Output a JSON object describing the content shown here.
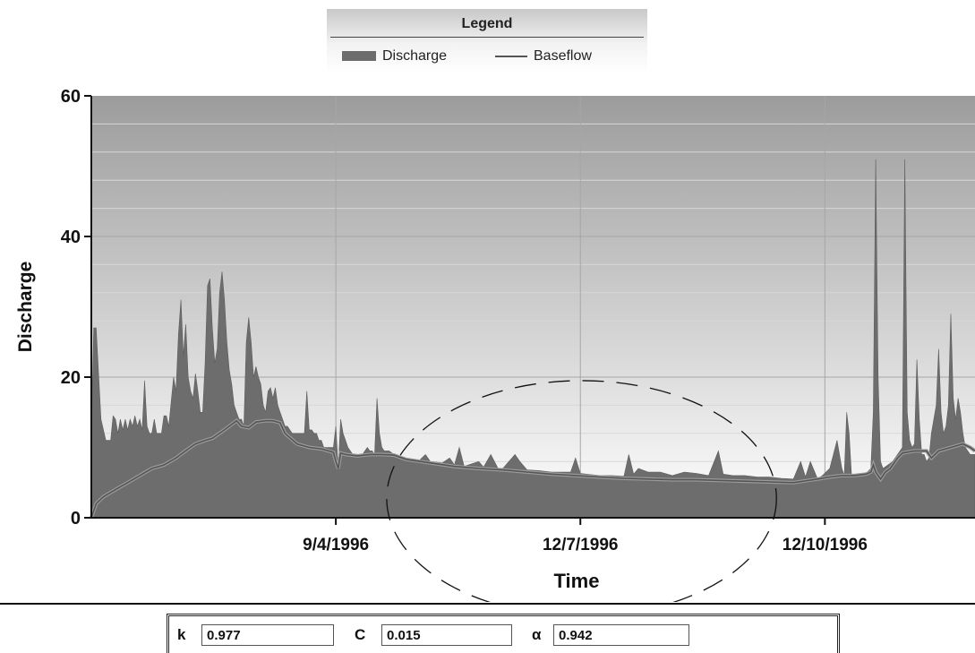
{
  "legend": {
    "title": "Legend",
    "items": [
      {
        "label": "Discharge",
        "type": "area",
        "color": "#6d6d6d"
      },
      {
        "label": "Baseflow",
        "type": "line",
        "color": "#555555"
      }
    ]
  },
  "chart_data": {
    "type": "area",
    "title": "",
    "xlabel": "Time",
    "ylabel": "Discharge",
    "ylim": [
      0,
      60
    ],
    "yticks": [
      0,
      20,
      40,
      60
    ],
    "xlim_days": [
      0,
      365
    ],
    "xticks": [
      {
        "label": "9/4/1996",
        "day": 101
      },
      {
        "label": "12/7/1996",
        "day": 202
      },
      {
        "label": "12/10/1996",
        "day": 303
      }
    ],
    "grid": true,
    "series": [
      {
        "name": "Discharge",
        "type": "area",
        "color": "#6d6d6d",
        "points": [
          [
            0,
            12
          ],
          [
            1,
            27
          ],
          [
            2,
            27
          ],
          [
            4,
            14
          ],
          [
            6,
            11
          ],
          [
            8,
            11
          ],
          [
            9,
            14.5
          ],
          [
            10,
            14
          ],
          [
            11,
            12
          ],
          [
            12,
            14
          ],
          [
            13,
            12.5
          ],
          [
            14,
            14
          ],
          [
            15,
            12.5
          ],
          [
            16,
            14
          ],
          [
            17,
            13
          ],
          [
            18,
            14.5
          ],
          [
            19,
            13
          ],
          [
            20,
            14
          ],
          [
            21,
            12.5
          ],
          [
            22,
            19.5
          ],
          [
            23,
            13
          ],
          [
            24,
            12
          ],
          [
            25,
            12
          ],
          [
            26,
            14
          ],
          [
            27,
            12
          ],
          [
            28,
            12
          ],
          [
            29,
            12
          ],
          [
            30,
            14.5
          ],
          [
            31,
            14.5
          ],
          [
            32,
            13
          ],
          [
            34,
            20
          ],
          [
            35,
            18
          ],
          [
            36,
            26
          ],
          [
            37,
            31
          ],
          [
            38,
            23
          ],
          [
            39,
            27.5
          ],
          [
            40,
            20
          ],
          [
            41,
            18
          ],
          [
            42,
            17
          ],
          [
            43,
            20.5
          ],
          [
            44,
            18
          ],
          [
            45,
            15
          ],
          [
            46,
            15
          ],
          [
            47,
            22
          ],
          [
            48,
            33
          ],
          [
            49,
            34
          ],
          [
            50,
            27
          ],
          [
            51,
            22
          ],
          [
            52,
            24
          ],
          [
            53,
            32
          ],
          [
            54,
            35
          ],
          [
            55,
            31
          ],
          [
            56,
            25
          ],
          [
            57,
            21
          ],
          [
            58,
            19
          ],
          [
            59,
            16
          ],
          [
            60,
            15
          ],
          [
            61,
            14
          ],
          [
            62,
            14
          ],
          [
            63,
            13
          ],
          [
            64,
            25
          ],
          [
            65,
            28.5
          ],
          [
            66,
            25
          ],
          [
            67,
            20
          ],
          [
            68,
            21.5
          ],
          [
            69,
            20
          ],
          [
            70,
            19
          ],
          [
            71,
            16
          ],
          [
            72,
            15
          ],
          [
            73,
            18
          ],
          [
            74,
            18.5
          ],
          [
            75,
            17
          ],
          [
            76,
            18.5
          ],
          [
            77,
            16
          ],
          [
            78,
            15
          ],
          [
            79,
            14
          ],
          [
            80,
            13
          ],
          [
            81,
            13
          ],
          [
            82,
            12.5
          ],
          [
            83,
            12
          ],
          [
            84,
            12
          ],
          [
            85,
            12
          ],
          [
            86,
            12
          ],
          [
            87,
            12
          ],
          [
            88,
            12
          ],
          [
            89,
            18
          ],
          [
            90,
            12.5
          ],
          [
            91,
            12.5
          ],
          [
            92,
            12
          ],
          [
            93,
            12
          ],
          [
            94,
            11
          ],
          [
            95,
            11
          ],
          [
            96,
            10
          ],
          [
            97,
            10
          ],
          [
            98,
            10
          ],
          [
            99,
            10
          ],
          [
            100,
            10
          ],
          [
            101,
            13
          ],
          [
            102,
            7
          ],
          [
            103,
            14
          ],
          [
            104,
            12
          ],
          [
            105,
            11
          ],
          [
            106,
            10
          ],
          [
            107,
            9.5
          ],
          [
            108,
            9
          ],
          [
            109,
            9
          ],
          [
            110,
            9
          ],
          [
            111,
            9
          ],
          [
            112,
            9
          ],
          [
            113,
            9.5
          ],
          [
            114,
            10
          ],
          [
            115,
            9.5
          ],
          [
            116,
            9.5
          ],
          [
            117,
            9
          ],
          [
            118,
            17
          ],
          [
            119,
            12
          ],
          [
            120,
            10
          ],
          [
            121,
            9.5
          ],
          [
            123,
            9.5
          ],
          [
            125,
            9
          ],
          [
            130,
            8.5
          ],
          [
            135,
            8
          ],
          [
            138,
            9
          ],
          [
            140,
            8
          ],
          [
            145,
            7.8
          ],
          [
            148,
            8.5
          ],
          [
            150,
            7.5
          ],
          [
            152,
            10
          ],
          [
            154,
            7.3
          ],
          [
            160,
            8
          ],
          [
            162,
            7.2
          ],
          [
            165,
            9
          ],
          [
            168,
            7
          ],
          [
            170,
            7
          ],
          [
            175,
            9
          ],
          [
            177,
            8
          ],
          [
            180,
            6.8
          ],
          [
            185,
            6.7
          ],
          [
            190,
            6.5
          ],
          [
            198,
            6.5
          ],
          [
            200,
            8.5
          ],
          [
            202,
            6.3
          ],
          [
            210,
            6
          ],
          [
            215,
            6
          ],
          [
            220,
            5.9
          ],
          [
            222,
            9
          ],
          [
            224,
            6.2
          ],
          [
            226,
            7
          ],
          [
            230,
            6.5
          ],
          [
            235,
            6.5
          ],
          [
            240,
            6
          ],
          [
            245,
            6.5
          ],
          [
            250,
            6.3
          ],
          [
            255,
            6
          ],
          [
            259,
            9.5
          ],
          [
            261,
            6.2
          ],
          [
            265,
            6
          ],
          [
            270,
            6
          ],
          [
            275,
            5.8
          ],
          [
            280,
            5.8
          ],
          [
            285,
            5.6
          ],
          [
            290,
            5.5
          ],
          [
            293,
            8
          ],
          [
            295,
            5.8
          ],
          [
            297,
            8
          ],
          [
            300,
            5.5
          ],
          [
            302,
            6
          ],
          [
            305,
            7
          ],
          [
            308,
            11
          ],
          [
            310,
            7
          ],
          [
            311,
            6
          ],
          [
            312,
            15
          ],
          [
            313,
            12
          ],
          [
            314,
            6
          ],
          [
            316,
            6.2
          ],
          [
            318,
            6.2
          ],
          [
            320,
            6.3
          ],
          [
            322,
            7
          ],
          [
            323,
            15
          ],
          [
            324,
            51
          ],
          [
            325,
            20
          ],
          [
            326,
            8
          ],
          [
            327,
            7
          ],
          [
            329,
            7.5
          ],
          [
            331,
            8
          ],
          [
            333,
            9
          ],
          [
            335,
            10
          ],
          [
            336,
            51
          ],
          [
            337,
            15
          ],
          [
            338,
            11
          ],
          [
            339,
            10
          ],
          [
            340,
            10.5
          ],
          [
            341,
            22.5
          ],
          [
            342,
            14
          ],
          [
            343,
            9
          ],
          [
            344,
            9
          ],
          [
            345,
            8
          ],
          [
            346,
            8.5
          ],
          [
            347,
            12
          ],
          [
            348,
            14
          ],
          [
            349,
            16
          ],
          [
            350,
            24
          ],
          [
            351,
            15
          ],
          [
            352,
            12
          ],
          [
            353,
            13
          ],
          [
            354,
            16
          ],
          [
            355,
            29
          ],
          [
            356,
            17
          ],
          [
            357,
            14
          ],
          [
            358,
            17
          ],
          [
            359,
            15
          ],
          [
            360,
            12
          ],
          [
            361,
            10
          ],
          [
            362,
            9.5
          ],
          [
            363,
            9
          ],
          [
            364,
            9
          ],
          [
            365,
            9
          ]
        ]
      },
      {
        "name": "Baseflow",
        "type": "line",
        "color": "#555555",
        "points": [
          [
            0,
            0
          ],
          [
            2,
            2
          ],
          [
            5,
            3
          ],
          [
            10,
            4
          ],
          [
            15,
            5
          ],
          [
            20,
            6
          ],
          [
            25,
            7
          ],
          [
            30,
            7.5
          ],
          [
            35,
            8.5
          ],
          [
            40,
            9.8
          ],
          [
            43,
            10.5
          ],
          [
            47,
            11
          ],
          [
            50,
            11.3
          ],
          [
            55,
            12.5
          ],
          [
            60,
            13.8
          ],
          [
            62,
            13
          ],
          [
            65,
            12.8
          ],
          [
            68,
            13.6
          ],
          [
            72,
            13.8
          ],
          [
            75,
            13.8
          ],
          [
            78,
            13.5
          ],
          [
            80,
            12
          ],
          [
            85,
            10.5
          ],
          [
            90,
            10
          ],
          [
            95,
            9.8
          ],
          [
            98,
            9.5
          ],
          [
            100,
            9.3
          ],
          [
            101,
            8
          ],
          [
            102,
            7
          ],
          [
            103,
            9.2
          ],
          [
            105,
            9
          ],
          [
            110,
            8.8
          ],
          [
            115,
            9
          ],
          [
            120,
            9
          ],
          [
            125,
            8.9
          ],
          [
            130,
            8.3
          ],
          [
            140,
            7.8
          ],
          [
            150,
            7.3
          ],
          [
            160,
            7
          ],
          [
            170,
            6.8
          ],
          [
            180,
            6.5
          ],
          [
            190,
            6.2
          ],
          [
            200,
            6
          ],
          [
            210,
            5.8
          ],
          [
            220,
            5.6
          ],
          [
            230,
            5.5
          ],
          [
            240,
            5.4
          ],
          [
            250,
            5.4
          ],
          [
            260,
            5.3
          ],
          [
            270,
            5.2
          ],
          [
            280,
            5.1
          ],
          [
            290,
            5
          ],
          [
            300,
            5.5
          ],
          [
            305,
            5.8
          ],
          [
            310,
            6
          ],
          [
            315,
            6
          ],
          [
            320,
            6.2
          ],
          [
            322,
            6.5
          ],
          [
            323,
            7.5
          ],
          [
            324,
            6.5
          ],
          [
            326,
            5.5
          ],
          [
            328,
            6.5
          ],
          [
            330,
            7
          ],
          [
            333,
            8.5
          ],
          [
            335,
            9.2
          ],
          [
            340,
            9.5
          ],
          [
            345,
            9.5
          ],
          [
            347,
            8.5
          ],
          [
            350,
            9.5
          ],
          [
            355,
            10
          ],
          [
            360,
            10.5
          ],
          [
            363,
            10
          ],
          [
            365,
            9.5
          ]
        ]
      }
    ],
    "annotation": {
      "shape": "dashed-ellipse",
      "x_range_days": [
        122,
        283
      ],
      "y_range": [
        -14,
        19.5
      ]
    }
  },
  "params": [
    {
      "label": "k",
      "value": "0.977"
    },
    {
      "label": "C",
      "value": "0.015"
    },
    {
      "label": "α",
      "value": "0.942"
    }
  ]
}
